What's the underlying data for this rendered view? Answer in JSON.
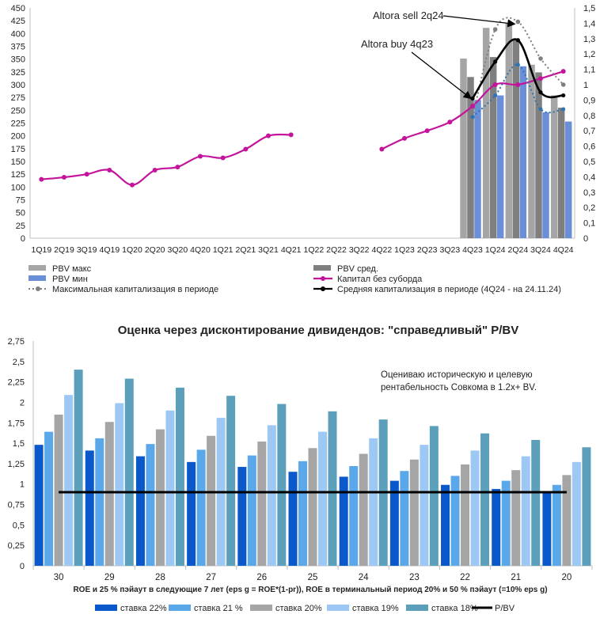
{
  "chart_data": [
    {
      "type": "bar",
      "categories": [
        "1Q19",
        "2Q19",
        "3Q19",
        "4Q19",
        "1Q20",
        "2Q20",
        "3Q20",
        "4Q20",
        "1Q21",
        "2Q21",
        "3Q21",
        "4Q21",
        "1Q22",
        "2Q22",
        "3Q22",
        "4Q22",
        "1Q23",
        "2Q23",
        "3Q23",
        "4Q23",
        "1Q24",
        "2Q24",
        "3Q24",
        "4Q24"
      ],
      "y_left": {
        "ylim": [
          0,
          450
        ],
        "ticks": [
          "0",
          "25",
          "50",
          "75",
          "100",
          "125",
          "150",
          "175",
          "200",
          "225",
          "250",
          "275",
          "300",
          "325",
          "350",
          "375",
          "400",
          "425",
          "450"
        ]
      },
      "y_right": {
        "ylim": [
          0,
          1.5
        ],
        "ticks": [
          "0",
          "0,1",
          "0,2",
          "0,3",
          "0,4",
          "0,5",
          "0,6",
          "0,7",
          "0,8",
          "0,9",
          "1",
          "1,1",
          "1,2",
          "1,3",
          "1,4",
          "1,5"
        ]
      },
      "legend": {
        "pbv_max": "PBV макс",
        "pbv_avg": "PBV сред.",
        "pbv_min": "PBV мин",
        "capital": "Капитал без суборда",
        "max_cap": "Максимальная капитализация в периоде",
        "avg_cap": "Средняя капитализация в периоде (4Q24 - на 24.11.24)"
      },
      "bars": {
        "pbv_max": [
          null,
          null,
          null,
          null,
          null,
          null,
          null,
          null,
          null,
          null,
          null,
          null,
          null,
          null,
          null,
          null,
          null,
          null,
          null,
          1.17,
          1.37,
          1.4,
          1.13,
          0.93
        ],
        "pbv_avg": [
          null,
          null,
          null,
          null,
          null,
          null,
          null,
          null,
          null,
          null,
          null,
          null,
          null,
          null,
          null,
          null,
          null,
          null,
          null,
          1.05,
          1.18,
          1.29,
          1.08,
          0.85
        ],
        "pbv_min": [
          null,
          null,
          null,
          null,
          null,
          null,
          null,
          null,
          null,
          null,
          null,
          null,
          null,
          null,
          null,
          null,
          null,
          null,
          null,
          0.9,
          0.93,
          1.12,
          0.82,
          0.76
        ]
      },
      "capital": [
        115,
        119,
        125,
        133,
        104,
        133,
        139,
        160,
        157,
        174,
        200,
        202,
        null,
        null,
        null,
        174,
        195,
        210,
        227,
        258,
        300,
        300,
        312,
        326
      ],
      "max_cap": [
        null,
        null,
        null,
        null,
        null,
        null,
        null,
        null,
        null,
        null,
        null,
        null,
        null,
        null,
        null,
        null,
        null,
        null,
        null,
        0.79,
        1.36,
        1.41,
        1.17,
        1.0
      ],
      "avg_cap": [
        null,
        null,
        null,
        null,
        null,
        null,
        null,
        null,
        null,
        null,
        null,
        null,
        null,
        null,
        null,
        null,
        null,
        null,
        null,
        0.91,
        1.15,
        1.29,
        0.95,
        0.93
      ],
      "min_cap": [
        null,
        null,
        null,
        null,
        null,
        null,
        null,
        null,
        null,
        null,
        null,
        null,
        null,
        null,
        null,
        null,
        null,
        null,
        null,
        0.79,
        0.93,
        1.13,
        0.84,
        0.84
      ],
      "annotations": [
        {
          "text": "Altora sell 2q24",
          "points_to": "2Q24"
        },
        {
          "text": "Altora buy 4q23",
          "points_to": "4Q23"
        }
      ],
      "colors": {
        "pbv_max": "#a5a5a5",
        "pbv_avg": "#7f7f7f",
        "pbv_min": "#6b8fd6",
        "capital": "#c3149b",
        "max_cap": "#7f7f7f",
        "avg_cap": "#000000",
        "min_cap": "#2e74b5"
      }
    },
    {
      "type": "bar",
      "title": "Оценка через дисконтирование дивидендов: \"справедливый\" P/BV",
      "xlabel": "ROE и 25 % пэйаут в следующие 7 лет (eps g = ROE*(1-pr)), ROE в терминальный период 20% и 50 % пэйаут (=10% eps g)",
      "categories": [
        "30",
        "29",
        "28",
        "27",
        "26",
        "25",
        "24",
        "23",
        "22",
        "21",
        "20"
      ],
      "ylim": [
        0,
        2.75
      ],
      "yticks": [
        "0",
        "0,25",
        "0,5",
        "0,75",
        "1",
        "1,25",
        "1,5",
        "1,75",
        "2",
        "2,25",
        "2,5",
        "2,75"
      ],
      "annotation": "Оцениваю историческую и целевую рентабельность Совкома в 1.2x+ BV.",
      "series": [
        {
          "name": "ставка 22%",
          "color": "#0a58c9",
          "values": [
            1.48,
            1.41,
            1.34,
            1.27,
            1.21,
            1.15,
            1.09,
            1.04,
            0.99,
            0.94,
            0.89
          ]
        },
        {
          "name": "ставка 21 %",
          "color": "#5aa8ea",
          "values": [
            1.64,
            1.56,
            1.49,
            1.42,
            1.35,
            1.28,
            1.22,
            1.16,
            1.1,
            1.04,
            0.99
          ]
        },
        {
          "name": "ставка 20%",
          "color": "#a5a5a5",
          "values": [
            1.85,
            1.76,
            1.67,
            1.59,
            1.52,
            1.44,
            1.37,
            1.3,
            1.24,
            1.17,
            1.11
          ]
        },
        {
          "name": "ставка 19%",
          "color": "#9ec8f4",
          "values": [
            2.09,
            1.99,
            1.9,
            1.81,
            1.72,
            1.64,
            1.56,
            1.48,
            1.41,
            1.34,
            1.27
          ]
        },
        {
          "name": "ставка 18%",
          "color": "#5b9fba",
          "values": [
            2.4,
            2.29,
            2.18,
            2.08,
            1.98,
            1.89,
            1.79,
            1.71,
            1.62,
            1.54,
            1.45
          ]
        }
      ],
      "line": {
        "name": "P/BV",
        "color": "#000000",
        "value": 0.9
      }
    }
  ]
}
